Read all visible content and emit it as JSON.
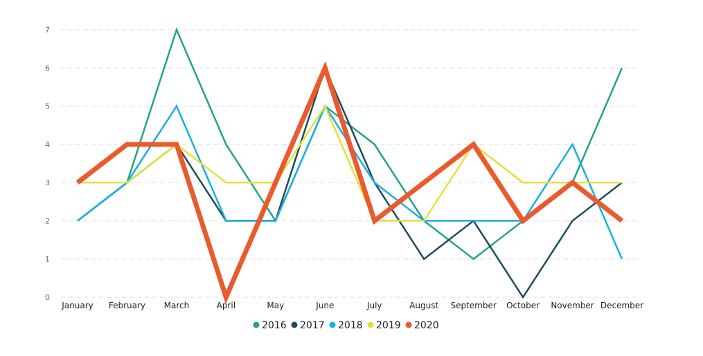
{
  "chart_data": {
    "type": "line",
    "categories": [
      "January",
      "February",
      "March",
      "April",
      "May",
      "June",
      "July",
      "August",
      "September",
      "October",
      "November",
      "December"
    ],
    "ylim": [
      0,
      7
    ],
    "yticks": [
      0,
      1,
      2,
      3,
      4,
      5,
      6,
      7
    ],
    "grid": true,
    "legend_position": "bottom",
    "series": [
      {
        "name": "2016",
        "color": "#1fa38a",
        "values": [
          2,
          3,
          7,
          4,
          2,
          5,
          4,
          2,
          1,
          2,
          3,
          6
        ]
      },
      {
        "name": "2017",
        "color": "#1c4b5e",
        "values": [
          2,
          3,
          4,
          2,
          2,
          6,
          3,
          1,
          2,
          0,
          2,
          3
        ]
      },
      {
        "name": "2018",
        "color": "#16aee6",
        "values": [
          2,
          3,
          5,
          2,
          2,
          5,
          3,
          2,
          2,
          2,
          4,
          1
        ]
      },
      {
        "name": "2019",
        "color": "#e6df3a",
        "values": [
          3,
          3,
          4,
          3,
          3,
          5,
          2,
          2,
          4,
          3,
          3,
          3
        ]
      },
      {
        "name": "2020",
        "color": "#ea5a2d",
        "values": [
          3,
          4,
          4,
          0,
          3,
          6,
          2,
          3,
          4,
          2,
          3,
          2
        ]
      }
    ]
  }
}
